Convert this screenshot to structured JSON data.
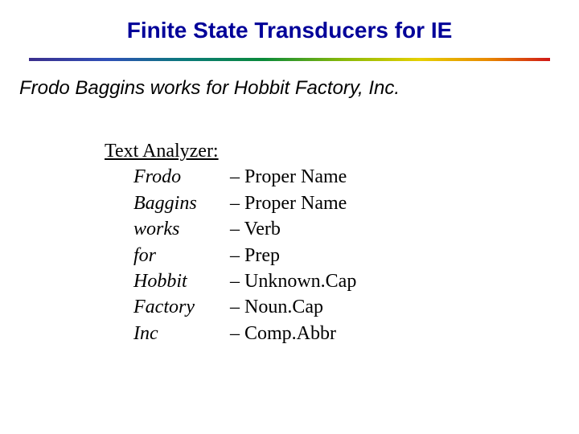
{
  "title": "Finite State Transducers for IE",
  "sentence": "Frodo Baggins works for Hobbit Factory, Inc.",
  "analyzer": {
    "heading": "Text Analyzer:",
    "rows": [
      {
        "word": "Frodo",
        "tag": "– Proper Name"
      },
      {
        "word": "Baggins",
        "tag": "– Proper Name"
      },
      {
        "word": "works",
        "tag": "– Verb"
      },
      {
        "word": "for",
        "tag": "– Prep"
      },
      {
        "word": "Hobbit",
        "tag": "– Unknown.Cap"
      },
      {
        "word": "Factory",
        "tag": "– Noun.Cap"
      },
      {
        "word": "Inc",
        "tag": "– Comp.Abbr"
      }
    ]
  },
  "colors": {
    "title_color": "#000099",
    "text_color": "#000000",
    "background": "#ffffff"
  }
}
